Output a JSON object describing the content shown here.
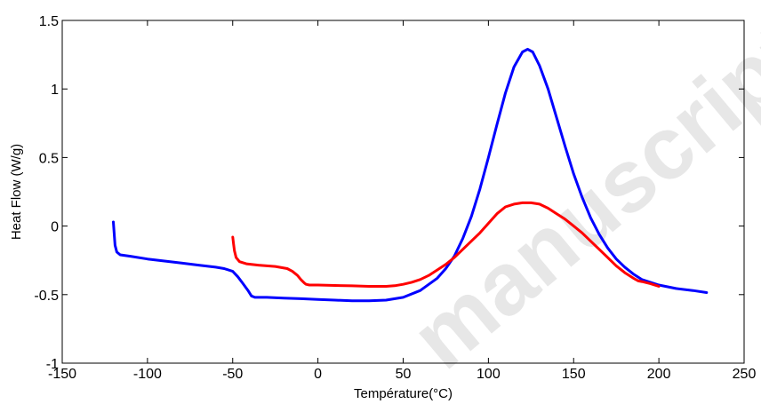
{
  "watermark": "manuscript",
  "chart_data": {
    "type": "line",
    "title": "",
    "xlabel": "Température(°C)",
    "ylabel": "Heat Flow (W/g)",
    "xlim": [
      -150,
      250
    ],
    "ylim": [
      -1,
      1.5
    ],
    "xticks": [
      -150,
      -100,
      -50,
      0,
      50,
      100,
      150,
      200,
      250
    ],
    "yticks": [
      -1,
      -0.5,
      0,
      0.5,
      1,
      1.5
    ],
    "xtick_labels": [
      "-150",
      "-100",
      "-50",
      "0",
      "50",
      "100",
      "150",
      "200",
      "250"
    ],
    "ytick_labels": [
      "-1",
      "-0.5",
      "0",
      "0.5",
      "1",
      "1.5"
    ],
    "grid": false,
    "legend": "none",
    "series": [
      {
        "color": "#0000ff",
        "x": [
          -120,
          -119.5,
          -119,
          -118,
          -116,
          -110,
          -100,
          -90,
          -80,
          -70,
          -60,
          -55,
          -50,
          -47,
          -44,
          -41,
          -39,
          -37,
          -35,
          -30,
          -20,
          -10,
          0,
          10,
          20,
          30,
          40,
          50,
          60,
          70,
          75,
          80,
          85,
          90,
          95,
          100,
          105,
          110,
          115,
          120,
          123,
          126,
          130,
          135,
          140,
          145,
          150,
          155,
          160,
          165,
          170,
          175,
          180,
          185,
          190,
          200,
          210,
          220,
          228
        ],
        "y": [
          0.03,
          -0.06,
          -0.14,
          -0.19,
          -0.21,
          -0.22,
          -0.24,
          -0.255,
          -0.27,
          -0.285,
          -0.3,
          -0.31,
          -0.33,
          -0.37,
          -0.42,
          -0.47,
          -0.51,
          -0.52,
          -0.52,
          -0.52,
          -0.525,
          -0.53,
          -0.535,
          -0.54,
          -0.545,
          -0.545,
          -0.54,
          -0.52,
          -0.47,
          -0.38,
          -0.31,
          -0.22,
          -0.09,
          0.07,
          0.27,
          0.5,
          0.74,
          0.97,
          1.16,
          1.27,
          1.29,
          1.27,
          1.17,
          1.0,
          0.79,
          0.58,
          0.38,
          0.21,
          0.06,
          -0.06,
          -0.16,
          -0.24,
          -0.3,
          -0.35,
          -0.39,
          -0.43,
          -0.455,
          -0.47,
          -0.485
        ]
      },
      {
        "color": "#ff0000",
        "x": [
          -50,
          -49.5,
          -49,
          -48,
          -46,
          -42,
          -35,
          -25,
          -18,
          -15,
          -12,
          -10,
          -8,
          -7,
          -5,
          0,
          10,
          20,
          30,
          40,
          45,
          50,
          55,
          60,
          65,
          70,
          75,
          80,
          85,
          90,
          95,
          100,
          105,
          110,
          115,
          120,
          125,
          130,
          135,
          140,
          145,
          150,
          155,
          160,
          165,
          170,
          175,
          180,
          185,
          188,
          190,
          195,
          200
        ],
        "y": [
          -0.08,
          -0.13,
          -0.18,
          -0.23,
          -0.26,
          -0.275,
          -0.285,
          -0.295,
          -0.31,
          -0.33,
          -0.36,
          -0.39,
          -0.415,
          -0.425,
          -0.43,
          -0.43,
          -0.433,
          -0.436,
          -0.44,
          -0.44,
          -0.435,
          -0.425,
          -0.41,
          -0.39,
          -0.36,
          -0.32,
          -0.28,
          -0.23,
          -0.17,
          -0.11,
          -0.05,
          0.02,
          0.09,
          0.14,
          0.16,
          0.17,
          0.17,
          0.16,
          0.13,
          0.09,
          0.05,
          0.0,
          -0.05,
          -0.11,
          -0.17,
          -0.23,
          -0.29,
          -0.34,
          -0.38,
          -0.4,
          -0.405,
          -0.42,
          -0.44
        ]
      }
    ]
  }
}
